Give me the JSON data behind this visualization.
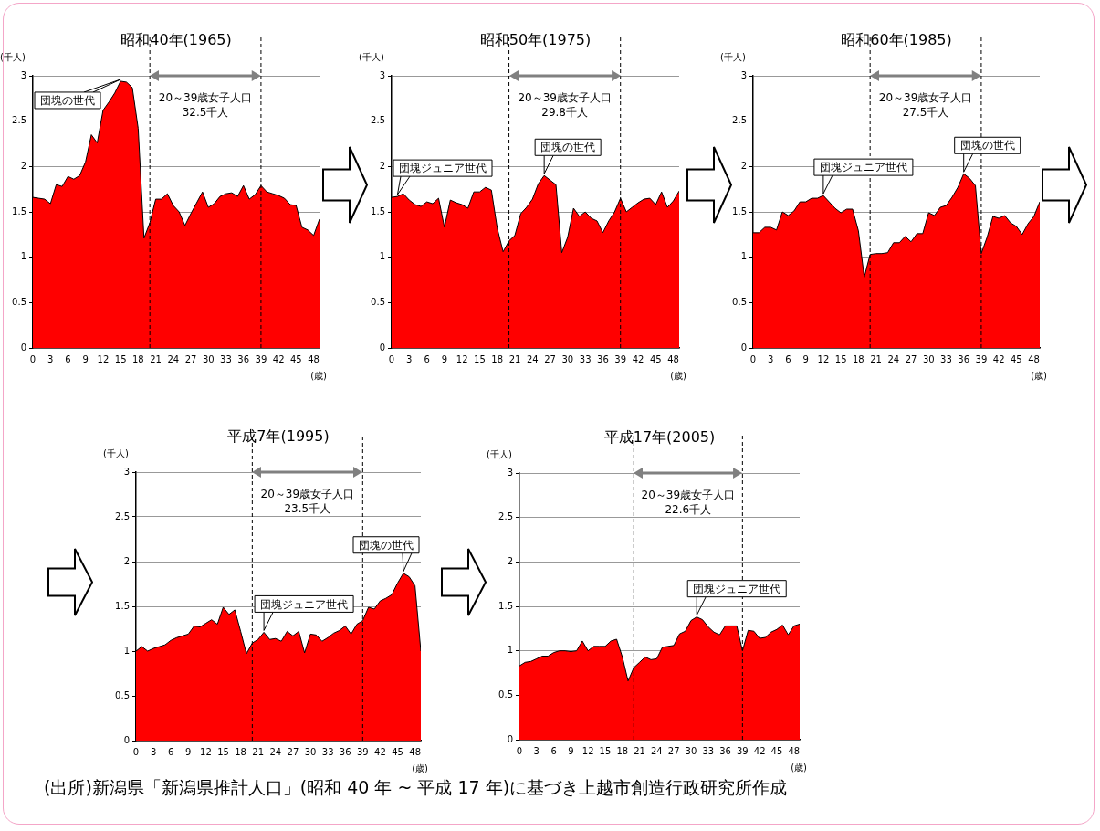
{
  "chart_data": [
    {
      "type": "area",
      "title": "昭和40年(1965)",
      "xlabel": "(歳)",
      "ylabel": "(千人)",
      "color": "#ff0000",
      "marker": "none",
      "grid": "y",
      "legend": false,
      "x": [
        0,
        1,
        2,
        3,
        4,
        5,
        6,
        7,
        8,
        9,
        10,
        11,
        12,
        13,
        14,
        15,
        16,
        17,
        18,
        19,
        20,
        21,
        22,
        23,
        24,
        25,
        26,
        27,
        28,
        29,
        30,
        31,
        32,
        33,
        34,
        35,
        36,
        37,
        38,
        39,
        40,
        41,
        42,
        43,
        44,
        45,
        46,
        47,
        48,
        49
      ],
      "values": [
        1.66,
        1.65,
        1.64,
        1.59,
        1.8,
        1.78,
        1.89,
        1.86,
        1.9,
        2.05,
        2.35,
        2.26,
        2.62,
        2.71,
        2.81,
        2.94,
        2.93,
        2.87,
        2.42,
        1.21,
        1.38,
        1.64,
        1.64,
        1.7,
        1.57,
        1.5,
        1.35,
        1.48,
        1.6,
        1.72,
        1.55,
        1.59,
        1.67,
        1.7,
        1.71,
        1.67,
        1.79,
        1.64,
        1.69,
        1.79,
        1.72,
        1.7,
        1.68,
        1.65,
        1.58,
        1.57,
        1.33,
        1.3,
        1.24,
        1.42
      ],
      "xlim": [
        0,
        49
      ],
      "xticks": [
        0,
        3,
        6,
        9,
        12,
        15,
        18,
        21,
        24,
        27,
        30,
        33,
        36,
        39,
        42,
        45,
        48
      ],
      "ylim": [
        0,
        3
      ],
      "yticks": [
        0,
        0.5,
        1,
        1.5,
        2,
        2.5,
        3
      ],
      "ref_lines": [
        {
          "axis": "x",
          "value": 20,
          "color": "#000000",
          "line_style": "dashed",
          "label": "20～39歳女子人口\n32.5千人"
        },
        {
          "axis": "x",
          "value": 39,
          "color": "#000000",
          "line_style": "dashed"
        }
      ],
      "annotations": [
        {
          "text": "団塊の世代",
          "x": 15,
          "y": 2.94
        }
      ]
    },
    {
      "type": "area",
      "title": "昭和50年(1975)",
      "xlabel": "(歳)",
      "ylabel": "(千人)",
      "color": "#ff0000",
      "marker": "none",
      "grid": "y",
      "legend": false,
      "x": [
        0,
        1,
        2,
        3,
        4,
        5,
        6,
        7,
        8,
        9,
        10,
        11,
        12,
        13,
        14,
        15,
        16,
        17,
        18,
        19,
        20,
        21,
        22,
        23,
        24,
        25,
        26,
        27,
        28,
        29,
        30,
        31,
        32,
        33,
        34,
        35,
        36,
        37,
        38,
        39,
        40,
        41,
        42,
        43,
        44,
        45,
        46,
        47,
        48,
        49
      ],
      "values": [
        1.66,
        1.67,
        1.7,
        1.63,
        1.58,
        1.56,
        1.61,
        1.59,
        1.65,
        1.33,
        1.63,
        1.6,
        1.58,
        1.54,
        1.72,
        1.72,
        1.77,
        1.74,
        1.32,
        1.06,
        1.18,
        1.24,
        1.48,
        1.55,
        1.64,
        1.81,
        1.9,
        1.85,
        1.8,
        1.05,
        1.22,
        1.54,
        1.45,
        1.5,
        1.43,
        1.4,
        1.27,
        1.4,
        1.5,
        1.65,
        1.5,
        1.55,
        1.6,
        1.64,
        1.65,
        1.58,
        1.72,
        1.55,
        1.62,
        1.73
      ],
      "xlim": [
        0,
        49
      ],
      "xticks": [
        0,
        3,
        6,
        9,
        12,
        15,
        18,
        21,
        24,
        27,
        30,
        33,
        36,
        39,
        42,
        45,
        48
      ],
      "ylim": [
        0,
        3
      ],
      "yticks": [
        0,
        0.5,
        1,
        1.5,
        2,
        2.5,
        3
      ],
      "ref_lines": [
        {
          "axis": "x",
          "value": 20,
          "color": "#000000",
          "line_style": "dashed",
          "label": "20～39歳女子人口\n29.8千人"
        },
        {
          "axis": "x",
          "value": 39,
          "color": "#000000",
          "line_style": "dashed"
        }
      ],
      "annotations": [
        {
          "text": "団塊ジュニア世代",
          "x": 1,
          "y": 1.67
        },
        {
          "text": "団塊の世代",
          "x": 26,
          "y": 1.9
        }
      ]
    },
    {
      "type": "area",
      "title": "昭和60年(1985)",
      "xlabel": "(歳)",
      "ylabel": "(千人)",
      "color": "#ff0000",
      "marker": "none",
      "grid": "y",
      "legend": false,
      "x": [
        0,
        1,
        2,
        3,
        4,
        5,
        6,
        7,
        8,
        9,
        10,
        11,
        12,
        13,
        14,
        15,
        16,
        17,
        18,
        19,
        20,
        21,
        22,
        23,
        24,
        25,
        26,
        27,
        28,
        29,
        30,
        31,
        32,
        33,
        34,
        35,
        36,
        37,
        38,
        39,
        40,
        41,
        42,
        43,
        44,
        45,
        46,
        47,
        48,
        49
      ],
      "values": [
        1.27,
        1.27,
        1.33,
        1.33,
        1.3,
        1.5,
        1.46,
        1.51,
        1.61,
        1.61,
        1.65,
        1.65,
        1.68,
        1.61,
        1.54,
        1.49,
        1.53,
        1.53,
        1.29,
        0.78,
        1.03,
        1.04,
        1.04,
        1.05,
        1.16,
        1.16,
        1.23,
        1.17,
        1.26,
        1.26,
        1.49,
        1.46,
        1.55,
        1.57,
        1.66,
        1.77,
        1.92,
        1.87,
        1.79,
        1.04,
        1.22,
        1.45,
        1.43,
        1.46,
        1.38,
        1.34,
        1.25,
        1.37,
        1.45,
        1.61
      ],
      "xlim": [
        0,
        49
      ],
      "xticks": [
        0,
        3,
        6,
        9,
        12,
        15,
        18,
        21,
        24,
        27,
        30,
        33,
        36,
        39,
        42,
        45,
        48
      ],
      "ylim": [
        0,
        3
      ],
      "yticks": [
        0,
        0.5,
        1,
        1.5,
        2,
        2.5,
        3
      ],
      "ref_lines": [
        {
          "axis": "x",
          "value": 20,
          "color": "#000000",
          "line_style": "dashed",
          "label": "20～39歳女子人口\n27.5千人"
        },
        {
          "axis": "x",
          "value": 39,
          "color": "#000000",
          "line_style": "dashed"
        }
      ],
      "annotations": [
        {
          "text": "団塊ジュニア世代",
          "x": 12,
          "y": 1.68
        },
        {
          "text": "団塊の世代",
          "x": 36,
          "y": 1.92
        }
      ]
    },
    {
      "type": "area",
      "title": "平成7年(1995)",
      "xlabel": "(歳)",
      "ylabel": "(千人)",
      "color": "#ff0000",
      "marker": "none",
      "grid": "y",
      "legend": false,
      "x": [
        0,
        1,
        2,
        3,
        4,
        5,
        6,
        7,
        8,
        9,
        10,
        11,
        12,
        13,
        14,
        15,
        16,
        17,
        18,
        19,
        20,
        21,
        22,
        23,
        24,
        25,
        26,
        27,
        28,
        29,
        30,
        31,
        32,
        33,
        34,
        35,
        36,
        37,
        38,
        39,
        40,
        41,
        42,
        43,
        44,
        45,
        46,
        47,
        48,
        49
      ],
      "values": [
        1.0,
        1.05,
        1.0,
        1.03,
        1.05,
        1.07,
        1.12,
        1.15,
        1.17,
        1.19,
        1.28,
        1.27,
        1.31,
        1.35,
        1.3,
        1.49,
        1.41,
        1.46,
        1.22,
        0.97,
        1.09,
        1.13,
        1.21,
        1.13,
        1.14,
        1.11,
        1.22,
        1.17,
        1.22,
        0.98,
        1.19,
        1.18,
        1.11,
        1.15,
        1.2,
        1.23,
        1.28,
        1.19,
        1.3,
        1.34,
        1.49,
        1.47,
        1.56,
        1.59,
        1.63,
        1.76,
        1.87,
        1.83,
        1.73,
        1.0
      ],
      "xlim": [
        0,
        49
      ],
      "xticks": [
        0,
        3,
        6,
        9,
        12,
        15,
        18,
        21,
        24,
        27,
        30,
        33,
        36,
        39,
        42,
        45,
        48
      ],
      "ylim": [
        0,
        3
      ],
      "yticks": [
        0,
        0.5,
        1,
        1.5,
        2,
        2.5,
        3
      ],
      "ref_lines": [
        {
          "axis": "x",
          "value": 20,
          "color": "#000000",
          "line_style": "dashed",
          "label": "20～39歳女子人口\n23.5千人"
        },
        {
          "axis": "x",
          "value": 39,
          "color": "#000000",
          "line_style": "dashed"
        }
      ],
      "annotations": [
        {
          "text": "団塊ジュニア世代",
          "x": 22,
          "y": 1.21
        },
        {
          "text": "団塊の世代",
          "x": 46,
          "y": 1.87
        }
      ]
    },
    {
      "type": "area",
      "title": "平成17年(2005)",
      "xlabel": "(歳)",
      "ylabel": "(千人)",
      "color": "#ff0000",
      "marker": "none",
      "grid": "y",
      "legend": false,
      "x": [
        0,
        1,
        2,
        3,
        4,
        5,
        6,
        7,
        8,
        9,
        10,
        11,
        12,
        13,
        14,
        15,
        16,
        17,
        18,
        19,
        20,
        21,
        22,
        23,
        24,
        25,
        26,
        27,
        28,
        29,
        30,
        31,
        32,
        33,
        34,
        35,
        36,
        37,
        38,
        39,
        40,
        41,
        42,
        43,
        44,
        45,
        46,
        47,
        48,
        49
      ],
      "values": [
        0.83,
        0.87,
        0.88,
        0.91,
        0.94,
        0.94,
        0.98,
        1.0,
        1.0,
        0.99,
        1.0,
        1.11,
        1.0,
        1.05,
        1.05,
        1.05,
        1.11,
        1.13,
        0.93,
        0.66,
        0.81,
        0.87,
        0.93,
        0.9,
        0.91,
        1.04,
        1.05,
        1.06,
        1.19,
        1.22,
        1.34,
        1.38,
        1.35,
        1.27,
        1.21,
        1.18,
        1.28,
        1.28,
        1.28,
        1.0,
        1.23,
        1.22,
        1.14,
        1.15,
        1.21,
        1.24,
        1.29,
        1.18,
        1.28,
        1.3
      ],
      "xlim": [
        0,
        49
      ],
      "xticks": [
        0,
        3,
        6,
        9,
        12,
        15,
        18,
        21,
        24,
        27,
        30,
        33,
        36,
        39,
        42,
        45,
        48
      ],
      "ylim": [
        0,
        3
      ],
      "yticks": [
        0,
        0.5,
        1,
        1.5,
        2,
        2.5,
        3
      ],
      "ref_lines": [
        {
          "axis": "x",
          "value": 20,
          "color": "#000000",
          "line_style": "dashed",
          "label": "20～39歳女子人口\n22.6千人"
        },
        {
          "axis": "x",
          "value": 39,
          "color": "#000000",
          "line_style": "dashed"
        }
      ],
      "annotations": [
        {
          "text": "団塊ジュニア世代",
          "x": 31,
          "y": 1.38
        },
        "(出所)新潟県「新潟県推計人口」(昭和 40 年 ~ 平成 17 年)に基づき上越市創造行政研究所作成"
      ]
    }
  ]
}
